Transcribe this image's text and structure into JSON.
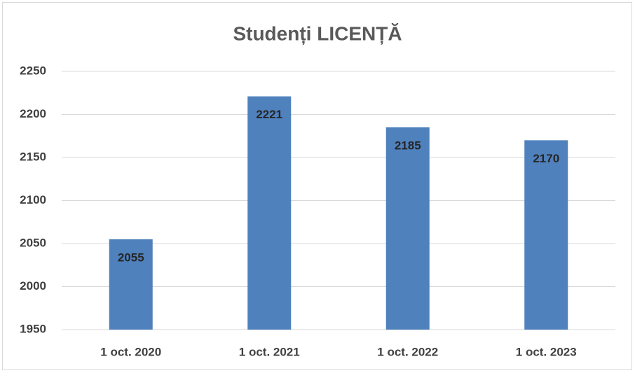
{
  "chart_data": {
    "type": "bar",
    "title": "Studenți LICENȚĂ",
    "categories": [
      "1 oct. 2020",
      "1 oct. 2021",
      "1 oct. 2022",
      "1 oct. 2023"
    ],
    "values": [
      2055,
      2221,
      2185,
      2170
    ],
    "color": "#4f81bd",
    "ylim": [
      1950,
      2250
    ],
    "yticks": [
      1950,
      2000,
      2050,
      2100,
      2150,
      2200,
      2250
    ],
    "grid": true
  }
}
